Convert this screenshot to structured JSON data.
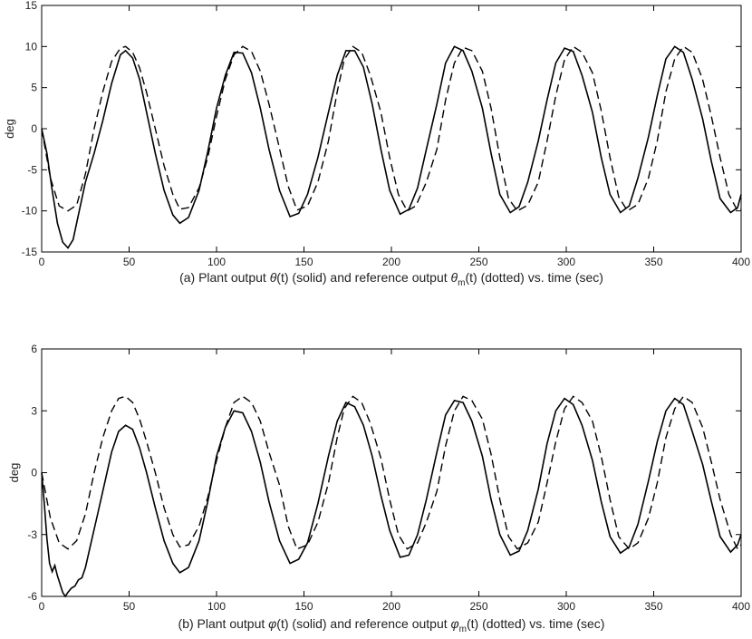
{
  "chart_data": [
    {
      "type": "line",
      "ylabel": "deg",
      "caption": {
        "pre": "(a) Plant output ",
        "sym1": "θ",
        "mid": "(t) (solid) and reference output ",
        "sym2": "θ",
        "sub2": "m",
        "post": "(t) (dotted) vs. time (sec)"
      },
      "xlim": [
        0,
        400
      ],
      "ylim": [
        -15,
        15
      ],
      "xticks": [
        0,
        50,
        100,
        150,
        200,
        250,
        300,
        350,
        400
      ],
      "xtick_labels": [
        "0",
        "50",
        "100",
        "150",
        "200",
        "250",
        "300",
        "350",
        "400"
      ],
      "yticks": [
        -15,
        -10,
        -5,
        0,
        5,
        10,
        15
      ],
      "ytick_labels": [
        "-15",
        "-10",
        "-5",
        "0",
        "5",
        "10",
        "15"
      ],
      "grid": false,
      "series": [
        {
          "style": "dashed",
          "x": [
            0,
            5,
            10,
            15,
            20,
            25,
            30,
            35,
            40,
            45,
            48,
            52,
            56,
            60,
            65,
            70,
            75,
            79,
            84,
            90,
            95,
            100,
            105,
            110,
            115,
            120,
            125,
            130,
            135,
            141,
            146,
            152,
            158,
            164,
            169,
            173,
            178,
            183,
            188,
            194,
            199,
            204,
            209,
            214,
            220,
            226,
            231,
            236,
            241,
            246,
            252,
            257,
            262,
            267,
            272,
            278,
            284,
            289,
            294,
            299,
            304,
            309,
            315,
            320,
            325,
            330,
            335,
            341,
            347,
            352,
            357,
            362,
            367,
            372,
            378,
            383,
            388,
            393,
            398,
            400
          ],
          "y": [
            0,
            -6,
            -9.4,
            -10,
            -9.3,
            -5.5,
            0,
            4.5,
            8.2,
            9.8,
            10,
            9.3,
            7.4,
            4.4,
            0,
            -4.5,
            -8,
            -9.8,
            -9.6,
            -7.2,
            -3.5,
            1.5,
            6,
            9,
            10,
            9.4,
            7,
            3,
            -1.5,
            -7,
            -9.9,
            -9.4,
            -6.5,
            -1.5,
            4.5,
            8.4,
            10,
            9.3,
            6.5,
            2,
            -3.5,
            -8,
            -10,
            -9.4,
            -6.5,
            -2.5,
            3.5,
            8,
            9.9,
            9.5,
            7,
            2.5,
            -3.5,
            -8.5,
            -10,
            -9.3,
            -6.5,
            -1.5,
            4,
            8.4,
            10,
            9.3,
            6.8,
            2.2,
            -3.5,
            -8.3,
            -10,
            -9.2,
            -6,
            -1.5,
            4.5,
            8.5,
            10,
            9.3,
            6,
            1.5,
            -3.5,
            -8,
            -10,
            -9.8
          ]
        },
        {
          "style": "solid",
          "x": [
            0,
            3,
            6,
            9,
            12,
            15,
            18,
            21,
            25,
            30,
            35,
            40,
            45,
            48,
            52,
            56,
            60,
            65,
            70,
            75,
            79,
            84,
            90,
            95,
            100,
            105,
            110,
            115,
            120,
            125,
            130,
            136,
            142,
            147,
            152,
            158,
            164,
            169,
            174,
            179,
            184,
            189,
            194,
            199,
            205,
            210,
            215,
            220,
            226,
            231,
            236,
            241,
            246,
            252,
            257,
            262,
            268,
            273,
            278,
            284,
            289,
            294,
            299,
            304,
            309,
            315,
            320,
            325,
            331,
            336,
            341,
            347,
            352,
            357,
            362,
            367,
            372,
            378,
            383,
            388,
            394,
            398,
            400
          ],
          "y": [
            0,
            -3,
            -7.5,
            -11.5,
            -13.8,
            -14.5,
            -13.5,
            -10.5,
            -6.5,
            -3,
            1,
            5.5,
            9,
            9.5,
            8.6,
            6,
            2,
            -3,
            -7.5,
            -10.5,
            -11.5,
            -10.8,
            -7.5,
            -2.8,
            2.5,
            6.5,
            9.3,
            9.2,
            6.8,
            2.5,
            -2.5,
            -7.5,
            -10.7,
            -10.3,
            -8,
            -3.5,
            2,
            6.5,
            9.5,
            9.5,
            7.5,
            3,
            -2.5,
            -7.5,
            -10.4,
            -9.8,
            -7.2,
            -2.5,
            3,
            8,
            10,
            9.5,
            7,
            2.5,
            -3,
            -8,
            -10.2,
            -9.5,
            -6.5,
            -1.5,
            3.5,
            8,
            9.8,
            9.4,
            6.5,
            2,
            -3.5,
            -8,
            -10.2,
            -9.4,
            -6,
            -1,
            4,
            8.5,
            10,
            9.3,
            6,
            1.2,
            -4,
            -8.5,
            -10.2,
            -9.6,
            -8
          ]
        }
      ]
    },
    {
      "type": "line",
      "ylabel": "deg",
      "caption": {
        "pre": "(b) Plant output ",
        "sym1": "φ",
        "mid": "(t) (solid) and reference output ",
        "sym2": "φ",
        "sub2": "m",
        "post": "(t) (dotted) vs. time (sec)"
      },
      "xlim": [
        0,
        400
      ],
      "ylim": [
        -6,
        6
      ],
      "xticks": [
        0,
        50,
        100,
        150,
        200,
        250,
        300,
        350,
        400
      ],
      "xtick_labels": [
        "0",
        "50",
        "100",
        "150",
        "200",
        "250",
        "300",
        "350",
        "400"
      ],
      "yticks": [
        -6,
        -3,
        0,
        3,
        6
      ],
      "ytick_labels": [
        "-6",
        "-3",
        "0",
        "3",
        "6"
      ],
      "grid": false,
      "series": [
        {
          "style": "dashed",
          "x": [
            0,
            5,
            10,
            15,
            20,
            25,
            30,
            35,
            40,
            44,
            48,
            52,
            56,
            60,
            65,
            70,
            75,
            79,
            84,
            90,
            95,
            100,
            105,
            110,
            115,
            120,
            125,
            130,
            136,
            141,
            146,
            152,
            158,
            164,
            169,
            173,
            178,
            183,
            188,
            194,
            199,
            204,
            209,
            215,
            220,
            226,
            231,
            236,
            241,
            246,
            252,
            257,
            262,
            267,
            272,
            278,
            284,
            289,
            294,
            299,
            304,
            309,
            315,
            320,
            325,
            330,
            336,
            341,
            347,
            352,
            357,
            362,
            367,
            372,
            378,
            383,
            388,
            394,
            398,
            400
          ],
          "y": [
            0,
            -2.2,
            -3.4,
            -3.7,
            -3.3,
            -2,
            0,
            1.7,
            3,
            3.6,
            3.7,
            3.4,
            2.6,
            1.5,
            0,
            -1.7,
            -3,
            -3.6,
            -3.5,
            -2.6,
            -1.2,
            0.6,
            2.2,
            3.4,
            3.7,
            3.4,
            2.5,
            1,
            -0.6,
            -2.6,
            -3.7,
            -3.5,
            -2.4,
            -0.5,
            1.7,
            3.1,
            3.7,
            3.4,
            2.4,
            0.7,
            -1.3,
            -3,
            -3.7,
            -3.4,
            -2.4,
            -0.9,
            1.3,
            3,
            3.7,
            3.5,
            2.6,
            0.9,
            -1.3,
            -3.1,
            -3.7,
            -3.4,
            -2.4,
            -0.5,
            1.5,
            3.1,
            3.7,
            3.4,
            2.5,
            0.8,
            -1.3,
            -3.1,
            -3.7,
            -3.4,
            -2.2,
            -0.5,
            1.7,
            3.1,
            3.7,
            3.4,
            2.2,
            0.5,
            -1.3,
            -3,
            -3.7,
            -3.5
          ]
        },
        {
          "style": "solid",
          "x": [
            0,
            1.5,
            3,
            4.5,
            6,
            7.5,
            9,
            10.5,
            12,
            13.5,
            15,
            17,
            19,
            21,
            23,
            25,
            28,
            32,
            36,
            40,
            44,
            48,
            52,
            56,
            60,
            65,
            70,
            75,
            79,
            84,
            90,
            95,
            100,
            105,
            110,
            115,
            120,
            125,
            130,
            136,
            142,
            147,
            152,
            158,
            164,
            169,
            174,
            179,
            184,
            189,
            194,
            199,
            205,
            210,
            215,
            220,
            226,
            231,
            236,
            241,
            246,
            252,
            257,
            262,
            268,
            273,
            278,
            284,
            289,
            294,
            299,
            304,
            309,
            315,
            320,
            325,
            331,
            336,
            341,
            347,
            352,
            357,
            362,
            367,
            372,
            378,
            383,
            388,
            394,
            398,
            400
          ],
          "y": [
            0,
            -1.5,
            -3.2,
            -4.4,
            -4.8,
            -4.5,
            -5,
            -5.4,
            -5.8,
            -6,
            -5.8,
            -5.6,
            -5.5,
            -5.2,
            -5.1,
            -4.6,
            -3.5,
            -2,
            -0.5,
            1,
            2,
            2.3,
            2.1,
            1.2,
            0,
            -1.7,
            -3.3,
            -4.4,
            -4.85,
            -4.6,
            -3.3,
            -1.4,
            0.8,
            2.2,
            3,
            2.9,
            2,
            0.5,
            -1.4,
            -3.3,
            -4.4,
            -4.2,
            -3.4,
            -1.5,
            0.8,
            2.5,
            3.4,
            3.2,
            2.3,
            0.8,
            -1.1,
            -2.8,
            -4.1,
            -4,
            -3,
            -1.3,
            1,
            2.8,
            3.5,
            3.4,
            2.5,
            0.8,
            -1.3,
            -3,
            -4,
            -3.8,
            -2.8,
            -0.8,
            1.4,
            3,
            3.6,
            3.3,
            2.3,
            0.6,
            -1.4,
            -3.1,
            -3.9,
            -3.6,
            -2.5,
            -0.4,
            1.5,
            3,
            3.6,
            3.3,
            2,
            0.4,
            -1.4,
            -3.1,
            -3.85,
            -3.5,
            -3
          ]
        }
      ]
    }
  ]
}
